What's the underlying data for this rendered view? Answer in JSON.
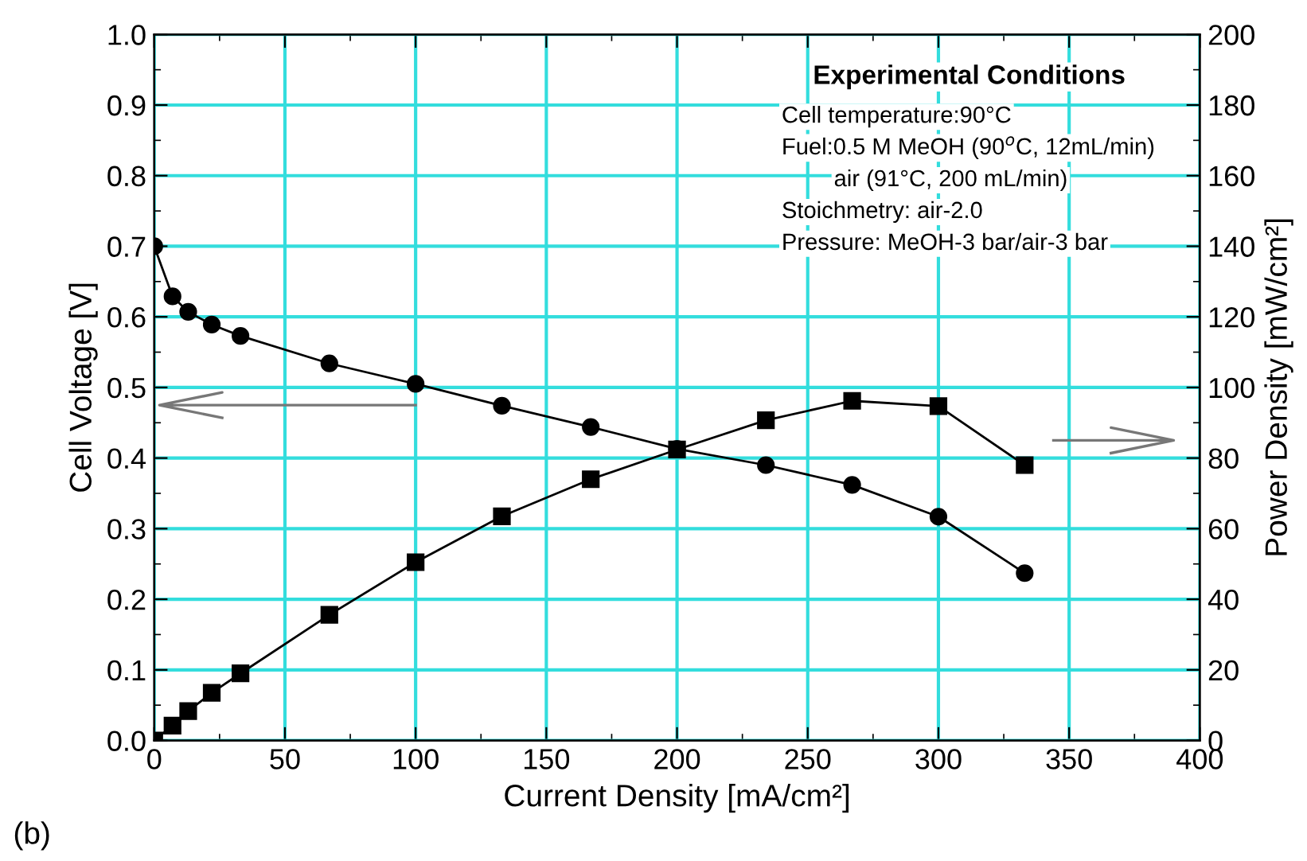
{
  "chart_data": {
    "type": "line",
    "xlabel": "Current Density [mA/cm²]",
    "ylabel": "Cell Voltage [V]",
    "y2label": "Power Density [mW/cm²]",
    "x": [
      0,
      7,
      13,
      22,
      33,
      67,
      100,
      133,
      167,
      200,
      234,
      267,
      300,
      333
    ],
    "series": [
      {
        "color": "#000000",
        "marker": "circle",
        "line_style": "solid",
        "values": [
          0.7,
          0.629,
          0.607,
          0.589,
          0.573,
          0.534,
          0.505,
          0.474,
          0.444,
          0.413,
          0.39,
          0.362,
          0.317,
          0.237
        ]
      },
      {
        "color": "#000000",
        "marker": "square",
        "line_style": "solid",
        "axis": "y2",
        "values": [
          0,
          4.2,
          8.3,
          13.5,
          19,
          35.6,
          50.5,
          63.5,
          74,
          82.4,
          90.7,
          96.2,
          94.7,
          78
        ]
      }
    ],
    "xlim": [
      0,
      400
    ],
    "xticks": [
      0,
      {
        "value": 25,
        "label": null
      },
      50,
      {
        "value": 75,
        "label": null
      },
      100,
      {
        "value": 125,
        "label": null
      },
      150,
      {
        "value": 175,
        "label": null
      },
      200,
      {
        "value": 225,
        "label": null
      },
      250,
      {
        "value": 275,
        "label": null
      },
      300,
      {
        "value": 325,
        "label": null
      },
      350,
      {
        "value": 375,
        "label": null
      },
      400
    ],
    "ylim": [
      0,
      1
    ],
    "yticks": [
      {
        "value": 0,
        "label": "0.0"
      },
      {
        "value": 0.05,
        "label": null
      },
      0.1,
      {
        "value": 0.15,
        "label": null
      },
      0.2,
      {
        "value": 0.25,
        "label": null
      },
      0.3,
      {
        "value": 0.35,
        "label": null
      },
      0.4,
      {
        "value": 0.45,
        "label": null
      },
      0.5,
      {
        "value": 0.55,
        "label": null
      },
      0.6,
      {
        "value": 0.65,
        "label": null
      },
      0.7,
      {
        "value": 0.75,
        "label": null
      },
      0.8,
      {
        "value": 0.85,
        "label": null
      },
      0.9,
      {
        "value": 0.95,
        "label": null
      },
      {
        "value": 1,
        "label": "1.0"
      }
    ],
    "y2lim": [
      0,
      200
    ],
    "y2ticks": [
      0,
      {
        "value": 10,
        "label": null
      },
      20,
      {
        "value": 30,
        "label": null
      },
      40,
      {
        "value": 50,
        "label": null
      },
      60,
      {
        "value": 70,
        "label": null
      },
      80,
      {
        "value": 90,
        "label": null
      },
      100,
      {
        "value": 110,
        "label": null
      },
      120,
      {
        "value": 130,
        "label": null
      },
      140,
      {
        "value": 150,
        "label": null
      },
      160,
      {
        "value": 170,
        "label": null
      },
      180,
      {
        "value": 190,
        "label": null
      },
      200
    ],
    "grid": true,
    "legend": false,
    "annotations": [
      "Experimental Conditions",
      "Cell temperature:90°C",
      "Fuel:0.5 M MeOH (90$^{o}$C, 12mL/min)",
      "air (91°C, 200 mL/min)",
      "Stoichmetry: air-2.0",
      "Pressure: MeOH-3 bar/air-3 bar",
      "(b)"
    ]
  }
}
